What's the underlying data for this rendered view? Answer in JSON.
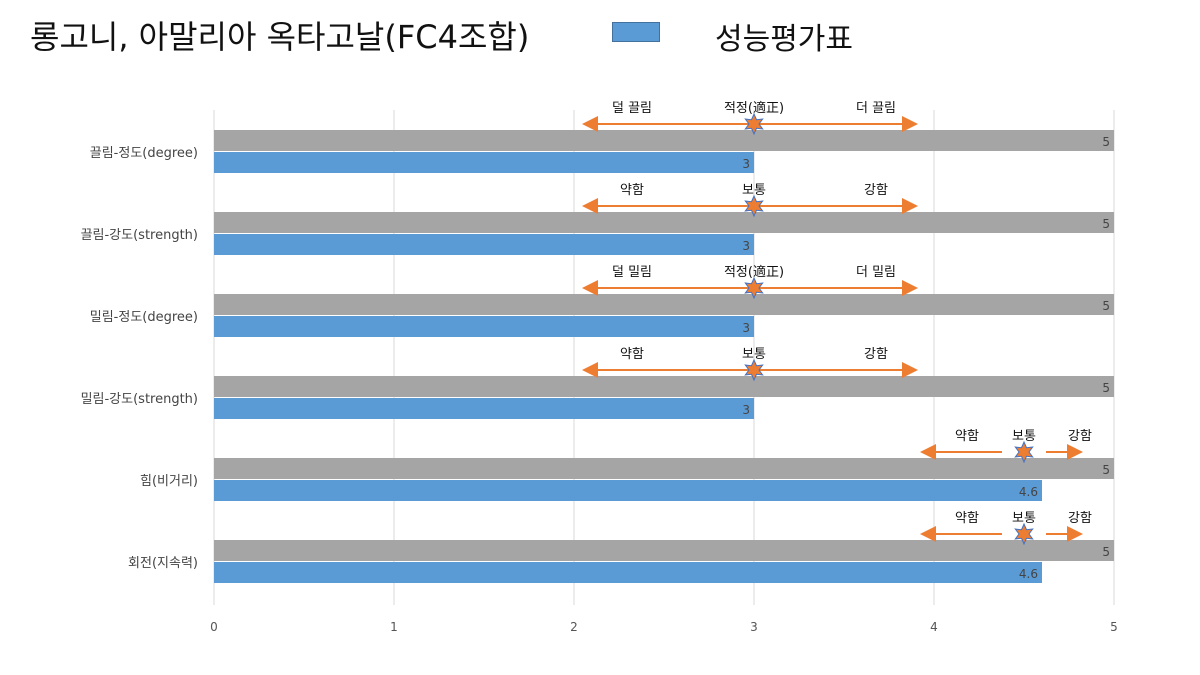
{
  "title": "롱고니, 아말리아 옥타고날(FC4조합)",
  "legend": "성능평가표",
  "chart_data": {
    "type": "bar",
    "orientation": "horizontal",
    "title": "롱고니, 아말리아 옥타고날(FC4조합)",
    "xlim": [
      0,
      5
    ],
    "xticks": [
      0,
      1,
      2,
      3,
      4,
      5
    ],
    "grid": true,
    "legend_position": "top",
    "categories": [
      "끌림-정도(degree)",
      "끌림-강도(strength)",
      "밀림-정도(degree)",
      "밀림-강도(strength)",
      "힘(비거리)",
      "회전(지속력)"
    ],
    "series": [
      {
        "values": [
          5,
          5,
          5,
          5,
          5,
          5
        ],
        "color": "#a5a5a5"
      },
      {
        "name": "성능평가표",
        "values": [
          3,
          3,
          3,
          3,
          4.6,
          4.6
        ],
        "color": "#5b9bd5"
      }
    ],
    "annotations": [
      {
        "labels": [
          "덜 끌림",
          "적정(適正)",
          "더 끌림"
        ],
        "marker": 3
      },
      {
        "labels": [
          "약함",
          "보통",
          "강함"
        ],
        "marker": 3
      },
      {
        "labels": [
          "덜 밀림",
          "적정(適正)",
          "더 밀림"
        ],
        "marker": 3
      },
      {
        "labels": [
          "약함",
          "보통",
          "강함"
        ],
        "marker": 3
      },
      {
        "labels": [
          "약함",
          "보통",
          "강함"
        ],
        "marker": 4.5
      },
      {
        "labels": [
          "약함",
          "보통",
          "강함"
        ],
        "marker": 4.5
      }
    ],
    "colors": {
      "arrow": "#ed7d31",
      "star": "#ed7d31",
      "star_stroke": "#4472c4"
    }
  }
}
